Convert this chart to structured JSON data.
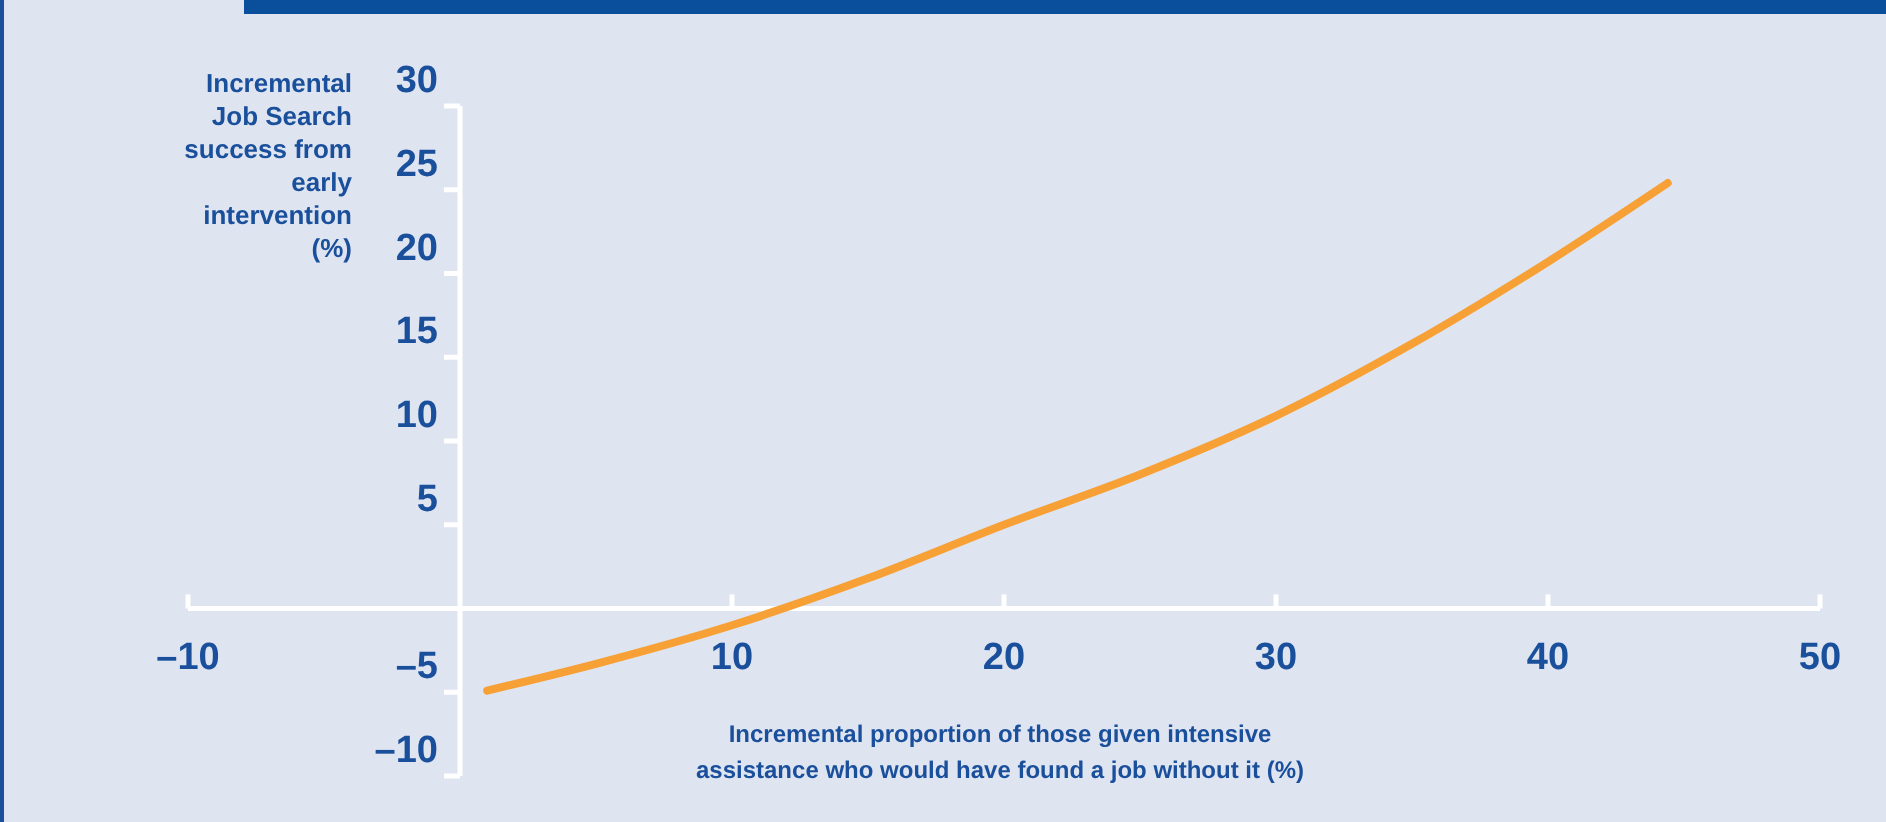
{
  "chart_data": {
    "type": "line",
    "ylabel": "Incremental Job Search success from early intervention (%)",
    "xlabel": "Incremental proportion of those given intensive assistance who would have found a job without it (%)",
    "x": [
      1,
      5,
      10,
      15,
      20,
      25,
      30,
      35,
      40,
      44.4
    ],
    "series": [
      {
        "color": "#f7a035",
        "values": [
          -4.9,
          -3.3,
          -1,
          1.8,
          5,
          8,
          11.5,
          15.8,
          20.7,
          25.4
        ]
      }
    ],
    "xlim": [
      -10,
      50
    ],
    "xticks": [
      {
        "value": -10,
        "label": "–10"
      },
      10,
      20,
      30,
      40,
      50
    ],
    "ylim": [
      -10,
      30
    ],
    "yticks": [
      {
        "value": -10,
        "label": "–10"
      },
      {
        "value": -5,
        "label": "–5"
      },
      5,
      10,
      15,
      20,
      25,
      30
    ],
    "grid": false,
    "marker": "none",
    "line_style": "solid"
  }
}
